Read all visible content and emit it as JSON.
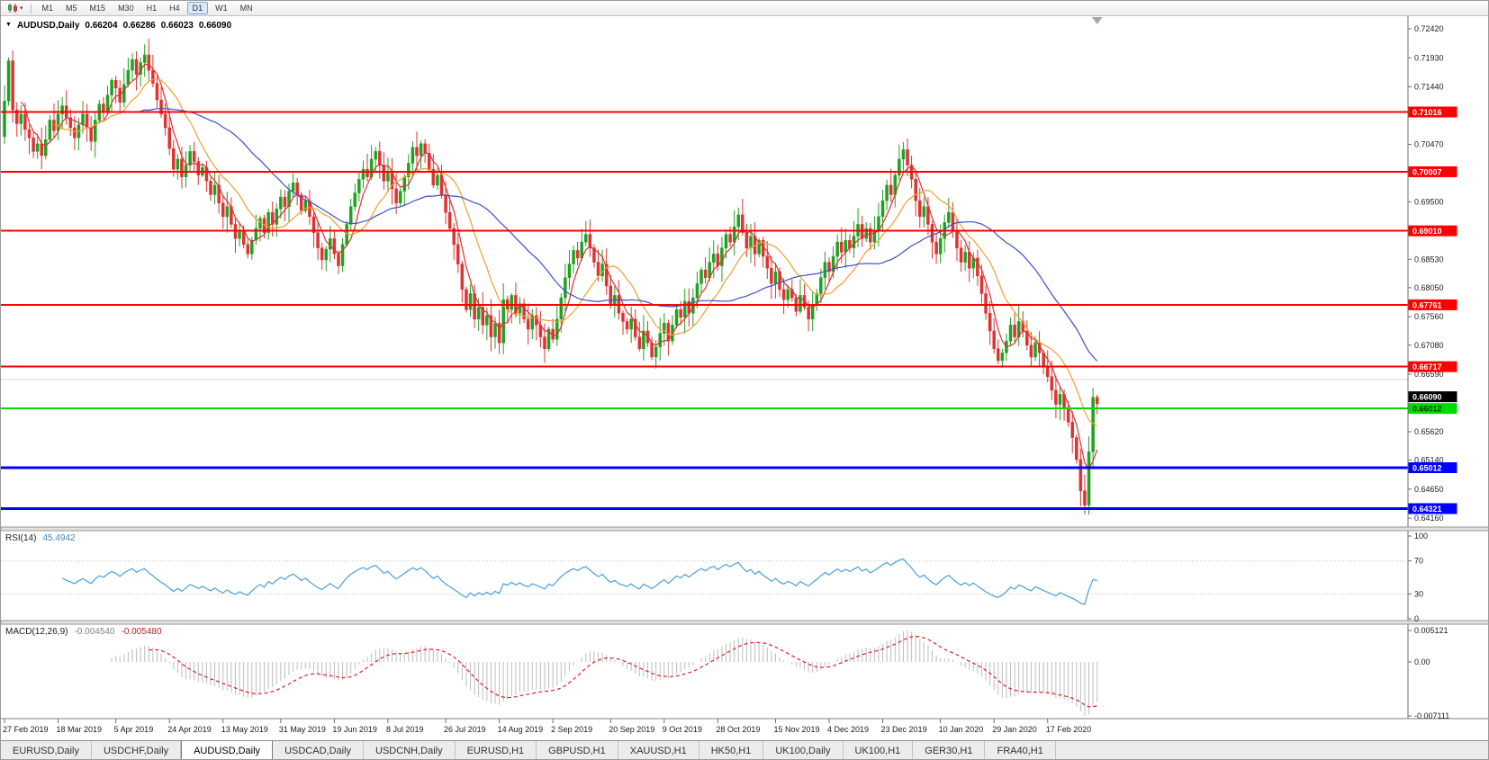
{
  "icons": {
    "symbol_dropdown": "▼",
    "toolbar_dropdown": "▾"
  },
  "toolbar": {
    "chart_menu_icon": "candlestick-chart",
    "timeframes": [
      "M1",
      "M5",
      "M15",
      "M30",
      "H1",
      "H4",
      "D1",
      "W1",
      "MN"
    ],
    "active_timeframe": "D1"
  },
  "chart": {
    "header": {
      "symbol_period": "AUDUSD,Daily",
      "open": "0.66204",
      "high": "0.66286",
      "low": "0.66023",
      "close": "0.66090"
    }
  },
  "rsi_panel": {
    "name": "RSI(14)",
    "value": "45.4942"
  },
  "macd_panel": {
    "name": "MACD(12,26,9)",
    "value_main": "-0.004540",
    "value_signal": "-0.005480"
  },
  "tabs": {
    "active": "AUDUSD,Daily",
    "items": [
      "EURUSD,Daily",
      "USDCHF,Daily",
      "AUDUSD,Daily",
      "USDCAD,Daily",
      "USDCNH,Daily",
      "EURUSD,H1",
      "GBPUSD,H1",
      "XAUUSD,H1",
      "HK50,H1",
      "UK100,Daily",
      "UK100,H1",
      "GER30,H1",
      "FRA40,H1"
    ]
  },
  "chart_data": {
    "type": "candlestick",
    "symbol": "AUDUSD",
    "timeframe": "Daily",
    "ylim": [
      0.6401,
      0.72633
    ],
    "price_axis_ticks": [
      "0.72420",
      "0.71930",
      "0.71440",
      "0.70950",
      "0.70470",
      "0.69980",
      "0.69500",
      "0.69010",
      "0.68530",
      "0.68050",
      "0.67560",
      "0.67080",
      "0.66590",
      "0.66110",
      "0.65620",
      "0.65140",
      "0.64650",
      "0.64160"
    ],
    "x_dates": [
      {
        "label": "27 Feb 2019",
        "i": 0
      },
      {
        "label": "18 Mar 2019",
        "i": 13
      },
      {
        "label": "5 Apr 2019",
        "i": 27
      },
      {
        "label": "24 Apr 2019",
        "i": 40
      },
      {
        "label": "13 May 2019",
        "i": 53
      },
      {
        "label": "31 May 2019",
        "i": 67
      },
      {
        "label": "19 Jun 2019",
        "i": 80
      },
      {
        "label": "8 Jul 2019",
        "i": 93
      },
      {
        "label": "26 Jul 2019",
        "i": 107
      },
      {
        "label": "14 Aug 2019",
        "i": 120
      },
      {
        "label": "2 Sep 2019",
        "i": 133
      },
      {
        "label": "20 Sep 2019",
        "i": 147
      },
      {
        "label": "9 Oct 2019",
        "i": 160
      },
      {
        "label": "28 Oct 2019",
        "i": 173
      },
      {
        "label": "15 Nov 2019",
        "i": 187
      },
      {
        "label": "4 Dec 2019",
        "i": 200
      },
      {
        "label": "23 Dec 2019",
        "i": 213
      },
      {
        "label": "10 Jan 2020",
        "i": 227
      },
      {
        "label": "29 Jan 2020",
        "i": 240
      },
      {
        "label": "17 Feb 2020",
        "i": 253
      }
    ],
    "first_open": 0.706,
    "closes": [
      0.712,
      0.7188,
      0.7105,
      0.7082,
      0.7098,
      0.7072,
      0.7058,
      0.7035,
      0.7048,
      0.7028,
      0.7055,
      0.7088,
      0.707,
      0.7098,
      0.7112,
      0.7092,
      0.7075,
      0.7058,
      0.708,
      0.7098,
      0.7075,
      0.7052,
      0.7088,
      0.7115,
      0.7102,
      0.713,
      0.7155,
      0.7142,
      0.7118,
      0.7148,
      0.7172,
      0.719,
      0.7165,
      0.7185,
      0.7198,
      0.7172,
      0.715,
      0.7122,
      0.7098,
      0.7075,
      0.704,
      0.7005,
      0.7022,
      0.6992,
      0.7012,
      0.7035,
      0.7018,
      0.6995,
      0.7008,
      0.6985,
      0.6962,
      0.6978,
      0.6948,
      0.6925,
      0.6942,
      0.6912,
      0.6888,
      0.6902,
      0.6878,
      0.6862,
      0.6885,
      0.6905,
      0.6922,
      0.6898,
      0.6932,
      0.6912,
      0.6938,
      0.6958,
      0.6942,
      0.6968,
      0.6982,
      0.6962,
      0.6935,
      0.6952,
      0.6925,
      0.6898,
      0.6872,
      0.6852,
      0.687,
      0.6888,
      0.6862,
      0.6842,
      0.6878,
      0.6912,
      0.6942,
      0.6965,
      0.6988,
      0.7005,
      0.6992,
      0.7022,
      0.7035,
      0.7012,
      0.6985,
      0.7002,
      0.6972,
      0.6948,
      0.6968,
      0.6992,
      0.7015,
      0.7042,
      0.7028,
      0.7048,
      0.7032,
      0.7005,
      0.6978,
      0.6995,
      0.6962,
      0.6932,
      0.6905,
      0.6878,
      0.6845,
      0.6802,
      0.6768,
      0.6795,
      0.6752,
      0.6772,
      0.6742,
      0.6758,
      0.6722,
      0.6745,
      0.6712,
      0.6785,
      0.6768,
      0.6792,
      0.6762,
      0.6778,
      0.6752,
      0.6735,
      0.6758,
      0.6742,
      0.6722,
      0.6702,
      0.6735,
      0.6718,
      0.6752,
      0.6788,
      0.6822,
      0.6845,
      0.6868,
      0.6855,
      0.6882,
      0.6895,
      0.6872,
      0.6848,
      0.6825,
      0.6845,
      0.6808,
      0.6778,
      0.6792,
      0.6762,
      0.6748,
      0.6735,
      0.6752,
      0.6722,
      0.6702,
      0.6732,
      0.6712,
      0.6688,
      0.6705,
      0.6728,
      0.6745,
      0.6715,
      0.6742,
      0.6768,
      0.6755,
      0.6782,
      0.6762,
      0.6788,
      0.6812,
      0.6835,
      0.6822,
      0.6848,
      0.6862,
      0.6842,
      0.6872,
      0.6895,
      0.6882,
      0.6908,
      0.6928,
      0.6898,
      0.6872,
      0.6892,
      0.6862,
      0.6885,
      0.6858,
      0.6838,
      0.6812,
      0.6832,
      0.6802,
      0.6785,
      0.6802,
      0.6788,
      0.6765,
      0.6792,
      0.6772,
      0.6752,
      0.6775,
      0.6795,
      0.6822,
      0.6848,
      0.6832,
      0.6858,
      0.6882,
      0.6865,
      0.6885,
      0.6872,
      0.6892,
      0.6912,
      0.6888,
      0.6905,
      0.6882,
      0.6902,
      0.6925,
      0.6952,
      0.6978,
      0.6962,
      0.6995,
      0.7022,
      0.7038,
      0.7012,
      0.6988,
      0.6952,
      0.6925,
      0.6942,
      0.6912,
      0.6882,
      0.6862,
      0.6888,
      0.6915,
      0.6932,
      0.6902,
      0.6872,
      0.6848,
      0.6865,
      0.6838,
      0.6855,
      0.6825,
      0.6795,
      0.6762,
      0.6732,
      0.6702,
      0.6682,
      0.6695,
      0.6715,
      0.6742,
      0.6722,
      0.6748,
      0.6732,
      0.6708,
      0.6688,
      0.6712,
      0.6695,
      0.6672,
      0.6655,
      0.6632,
      0.6608,
      0.6625,
      0.6602,
      0.6578,
      0.6552,
      0.6515,
      0.6462,
      0.6438,
      0.6528,
      0.662,
      0.6609
    ],
    "moving_averages": [
      {
        "name": "fast",
        "period": 5,
        "color": "#e03030"
      },
      {
        "name": "mid",
        "period": 13,
        "color": "#f0a030"
      },
      {
        "name": "slow",
        "period": 34,
        "color": "#3c50c8"
      }
    ],
    "horizontal_lines": [
      {
        "price": 0.71016,
        "label": "0.71016",
        "color": "#ff0000",
        "width": 2
      },
      {
        "price": 0.70007,
        "label": "0.70007",
        "color": "#ff0000",
        "width": 2
      },
      {
        "price": 0.6901,
        "label": "0.69010",
        "color": "#ff0000",
        "width": 2
      },
      {
        "price": 0.67761,
        "label": "0.67761",
        "color": "#ff0000",
        "width": 2
      },
      {
        "price": 0.66717,
        "label": "0.66717",
        "color": "#ff0000",
        "width": 2
      },
      {
        "price": 0.665,
        "label": "",
        "color": "#d6d6d6",
        "width": 1
      },
      {
        "price": 0.66012,
        "label": "0.66012",
        "color": "#00dc00",
        "width": 2,
        "text_color": "#003300"
      },
      {
        "price": 0.65012,
        "label": "0.65012",
        "color": "#0000ff",
        "width": 3
      },
      {
        "price": 0.64321,
        "label": "0.64321",
        "color": "#0000ff",
        "width": 3
      }
    ],
    "bid": {
      "price": 0.6609,
      "label": "0.66090",
      "color": "#000000"
    },
    "rsi": {
      "period": 14,
      "color": "#4a9edb",
      "levels": [
        70,
        30
      ],
      "axis": [
        "100",
        "70",
        "30",
        "0"
      ],
      "current": 45.4942
    },
    "macd": {
      "fast": 12,
      "slow": 26,
      "signal": 9,
      "histogram_color": "#bdbdbd",
      "signal_color": "#e02020",
      "axis": {
        "max": "0.005121",
        "zero": "0.00",
        "min": "-0.007111"
      },
      "current_macd": -0.00454,
      "current_signal": -0.00548
    }
  }
}
